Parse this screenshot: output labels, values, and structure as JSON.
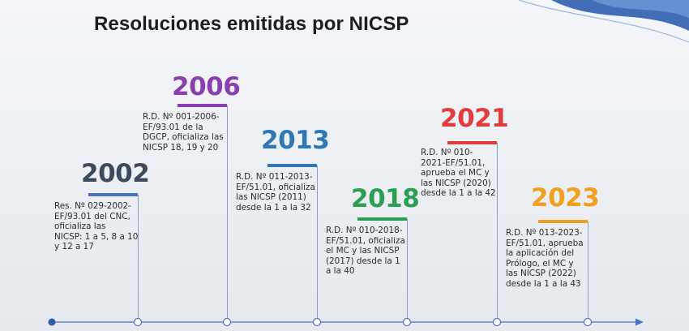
{
  "title": "Resoluciones emitidas por NICSP",
  "colors": {
    "y2002": "#3d4a5c",
    "y2006": "#8a3fb0",
    "y2013": "#2f78b8",
    "y2018": "#2a9e52",
    "y2021": "#e23c3c",
    "y2023": "#f0a01c",
    "axis": "#4a72c4"
  },
  "events": [
    {
      "year": "2002",
      "text": "Res. Nº 029-2002-\nEF/93.01 del CNC,\noficializa las\nNICSP: 1 a 5, 8 a 10\ny 12 a 17"
    },
    {
      "year": "2006",
      "text": "R.D. Nº 001-2006-\nEF/93.01 de la\nDGCP, oficializa las\nNICSP 18, 19 y 20"
    },
    {
      "year": "2013",
      "text": "R.D. Nº 011-2013-\nEF/51.01, oficializa\nlas NICSP (2011)\ndesde la 1 a la 32"
    },
    {
      "year": "2018",
      "text": "R.D. Nº 010-2018-\nEF/51.01, oficializa\nel MC y las NICSP\n(2017) desde la 1\na la 40"
    },
    {
      "year": "2021",
      "text": "R.D. Nº 010-\n2021-EF/51.01,\naprueba el MC y\nlas NICSP (2020)\ndesde la 1 a la 42"
    },
    {
      "year": "2023",
      "text": "R.D. Nº 013-2023-\nEF/51.01, aprueba\nla aplicación del\nPrólogo, el MC y\nlas NICSP (2022)\ndesde la 1 a la 43"
    }
  ]
}
